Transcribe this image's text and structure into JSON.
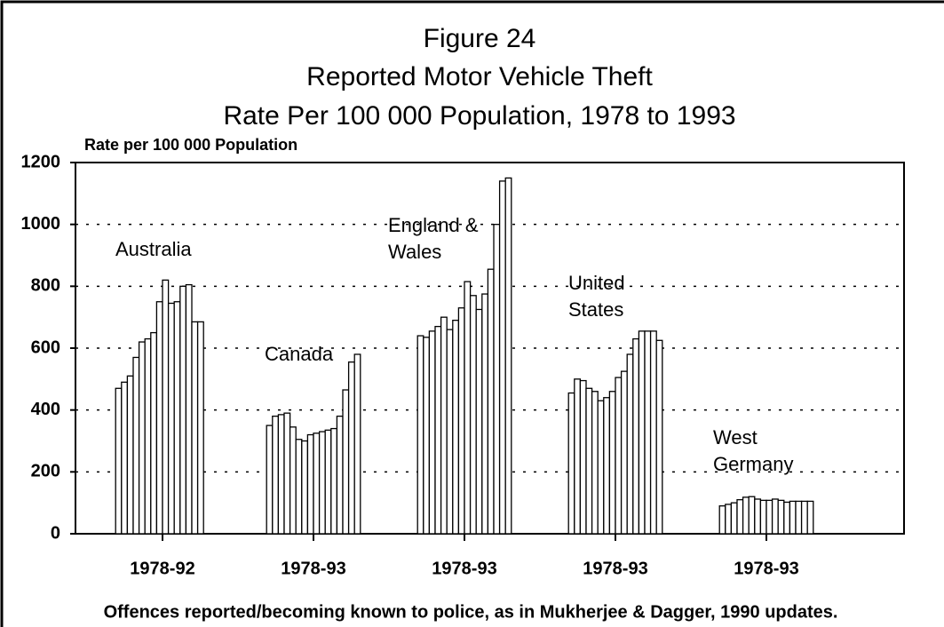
{
  "chart_data": {
    "type": "bar",
    "title": [
      "Figure 24",
      "Reported Motor Vehicle Theft",
      "Rate Per 100 000 Population, 1978 to 1993"
    ],
    "y_label": "Rate per 100 000 Population",
    "note": "Offences reported/becoming known to police, as in Mukherjee & Dagger, 1990 updates.",
    "ylim": [
      0,
      1200
    ],
    "yticks": [
      0,
      200,
      400,
      600,
      800,
      1000,
      1200
    ],
    "grid": true,
    "color": "#ffffff",
    "groups": [
      {
        "name": [
          "Australia"
        ],
        "label": "1978-92",
        "values": [
          470,
          490,
          510,
          570,
          620,
          630,
          650,
          750,
          820,
          745,
          750,
          800,
          805,
          685,
          685
        ]
      },
      {
        "name": [
          "Canada"
        ],
        "label": "1978-93",
        "values": [
          350,
          380,
          385,
          390,
          345,
          305,
          300,
          320,
          325,
          330,
          335,
          340,
          380,
          465,
          555,
          580
        ]
      },
      {
        "name": [
          "England &",
          "Wales"
        ],
        "label": "1978-93",
        "values": [
          640,
          635,
          655,
          670,
          700,
          660,
          690,
          730,
          815,
          770,
          725,
          775,
          855,
          1000,
          1140,
          1150
        ]
      },
      {
        "name": [
          "United",
          "States"
        ],
        "label": "1978-93",
        "values": [
          455,
          500,
          495,
          470,
          460,
          430,
          440,
          460,
          505,
          525,
          580,
          630,
          655,
          655,
          655,
          625
        ]
      },
      {
        "name": [
          "West",
          "Germany"
        ],
        "label": "1978-93",
        "values": [
          90,
          95,
          100,
          110,
          118,
          120,
          112,
          108,
          108,
          112,
          108,
          102,
          105,
          105,
          105,
          105
        ]
      }
    ]
  }
}
